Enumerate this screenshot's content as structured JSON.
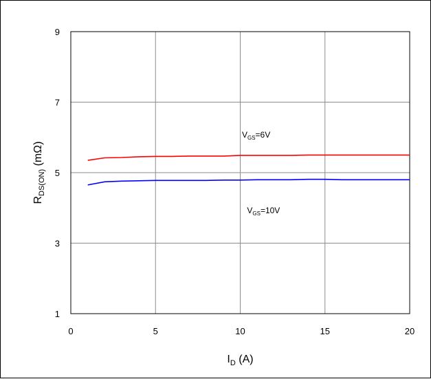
{
  "chart_data": {
    "type": "line",
    "title": "",
    "xlabel": {
      "main": "I",
      "sub": "D",
      "rest": " (A)"
    },
    "ylabel": {
      "main": "R",
      "sub": "DS(ON)",
      "rest": " (mΩ)"
    },
    "xlim": [
      0,
      20
    ],
    "ylim": [
      1,
      9
    ],
    "xticks": [
      0,
      5,
      10,
      15,
      20
    ],
    "yticks": [
      1,
      3,
      5,
      7,
      9
    ],
    "grid": true,
    "series": [
      {
        "label": {
          "main": "V",
          "sub": "GS",
          "rest": "=6V"
        },
        "color": "#ff0000",
        "x": [
          1,
          2,
          3,
          4,
          5,
          6,
          7,
          8,
          9,
          10,
          11,
          12,
          13,
          14,
          15,
          16,
          17,
          18,
          19,
          20
        ],
        "y": [
          5.35,
          5.42,
          5.43,
          5.45,
          5.46,
          5.46,
          5.47,
          5.47,
          5.47,
          5.49,
          5.49,
          5.49,
          5.49,
          5.5,
          5.5,
          5.5,
          5.5,
          5.5,
          5.5,
          5.5
        ],
        "label_pos": {
          "x": 10.1,
          "y": 6.0
        }
      },
      {
        "label": {
          "main": "V",
          "sub": "GS",
          "rest": "=10V"
        },
        "color": "#0000ff",
        "x": [
          1,
          2,
          3,
          4,
          5,
          6,
          7,
          8,
          9,
          10,
          11,
          12,
          13,
          14,
          15,
          16,
          17,
          18,
          19,
          20
        ],
        "y": [
          4.65,
          4.74,
          4.76,
          4.77,
          4.78,
          4.78,
          4.78,
          4.78,
          4.79,
          4.79,
          4.8,
          4.8,
          4.8,
          4.81,
          4.81,
          4.8,
          4.8,
          4.8,
          4.8,
          4.8
        ],
        "label_pos": {
          "x": 10.4,
          "y": 3.85
        }
      }
    ]
  }
}
